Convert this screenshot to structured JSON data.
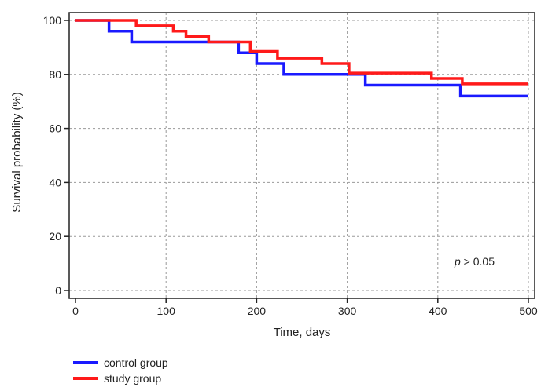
{
  "chart_data": {
    "type": "line",
    "step": true,
    "xlabel": "Time, days",
    "ylabel": "Survival probability (%)",
    "xlim": [
      0,
      500
    ],
    "ylim": [
      0,
      100
    ],
    "xticks": [
      0,
      100,
      200,
      300,
      400,
      500
    ],
    "yticks": [
      0,
      20,
      40,
      60,
      80,
      100
    ],
    "grid": true,
    "annotation": {
      "italic": "p",
      "text": " > 0.05"
    },
    "legend_position": "bottom-left",
    "series": [
      {
        "name": "control group",
        "color": "#1a1aff",
        "x": [
          0,
          37,
          62,
          150,
          180,
          200,
          230,
          320,
          425,
          500
        ],
        "y": [
          100,
          96,
          92,
          92,
          88,
          84,
          80,
          76,
          72,
          72
        ]
      },
      {
        "name": "study group",
        "color": "#ff1a1a",
        "x": [
          0,
          67,
          108,
          122,
          147,
          193,
          223,
          272,
          302,
          393,
          427,
          500
        ],
        "y": [
          100,
          98,
          96,
          94,
          92,
          88.5,
          86,
          84,
          80.5,
          78.5,
          76.5,
          76.5
        ]
      }
    ]
  }
}
